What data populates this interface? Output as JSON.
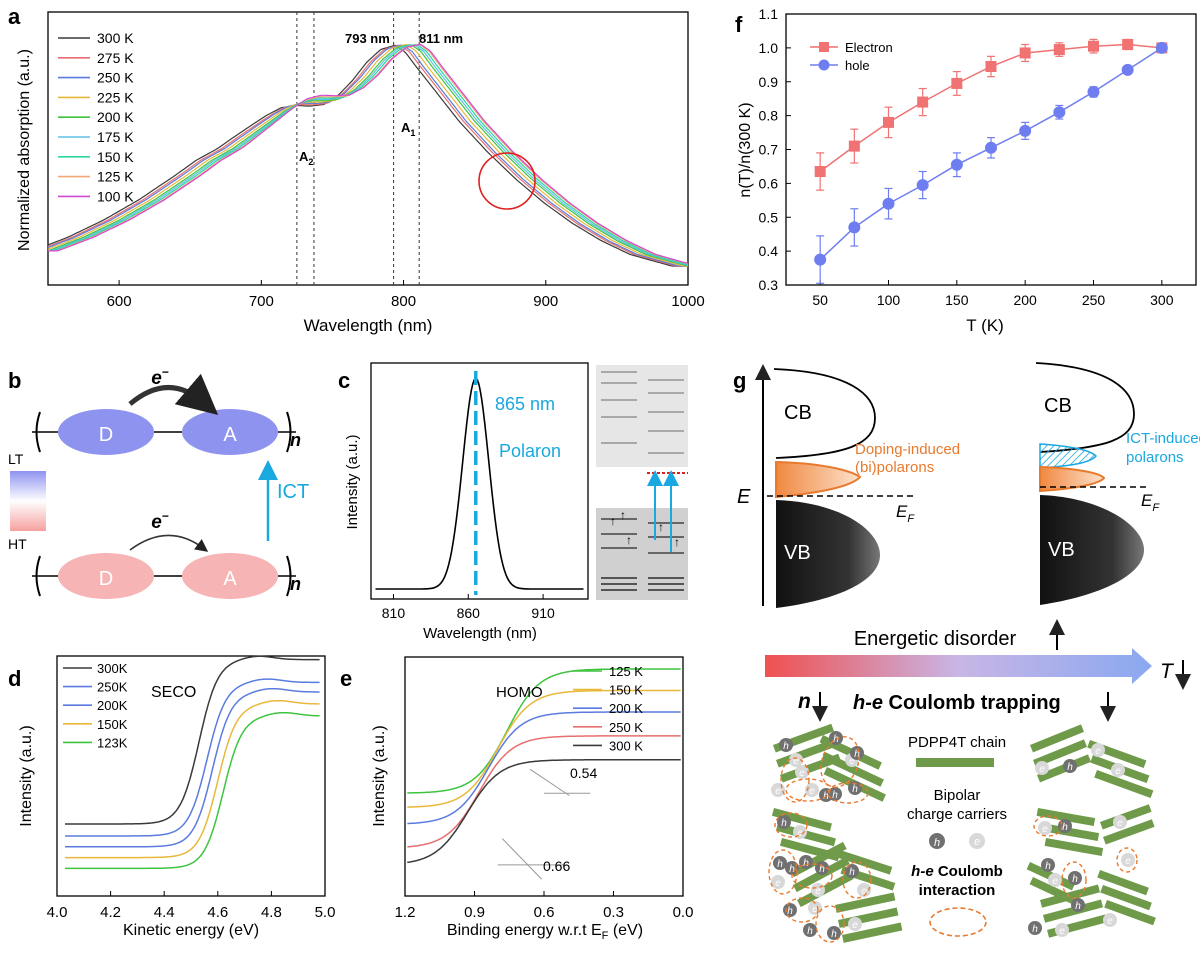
{
  "panel_letters": {
    "a": "a",
    "b": "b",
    "c": "c",
    "d": "d",
    "e": "e",
    "f": "f",
    "g": "g"
  },
  "colors": {
    "t300": "#3a3a3a",
    "t275": "#e86f6f",
    "t250": "#5b7be0",
    "t225": "#e8b83a",
    "t200": "#3ec43e",
    "t175": "#5fc0e8",
    "t150": "#2ad6a0",
    "t125": "#f0a878",
    "t100": "#d24ad2",
    "electron": "#f07272",
    "hole": "#6e7ef0",
    "lt": "#8f93f0",
    "ht": "#f6b4b4",
    "ict": "#19a8e0",
    "doping": "#e87a2e",
    "chain": "#6f9a4a",
    "red_circle": "#e02020"
  },
  "chart_data": [
    {
      "id": "a",
      "type": "line",
      "xlabel": "Wavelength (nm)",
      "ylabel": "Normalized absorption (a.u.)",
      "xlim": [
        550,
        1000
      ],
      "ylim": [
        0.2,
        1.0
      ],
      "xticks": [
        "600",
        "700",
        "800",
        "900",
        "1000"
      ],
      "annotations": {
        "peak1": "793 nm",
        "peak2": "811 nm",
        "a1": "A",
        "a1_sub": "1",
        "a2": "A",
        "a2_sub": "2"
      },
      "dashed_lines_x": [
        725,
        737,
        793,
        811
      ],
      "series": [
        {
          "name": "300 K",
          "key": "t300",
          "shift": -11
        },
        {
          "name": "275 K",
          "key": "t275",
          "shift": -8
        },
        {
          "name": "250 K",
          "key": "t250",
          "shift": -6
        },
        {
          "name": "225 K",
          "key": "t225",
          "shift": -3
        },
        {
          "name": "200 K",
          "key": "t200",
          "shift": 0
        },
        {
          "name": "175 K",
          "key": "t175",
          "shift": 2
        },
        {
          "name": "150 K",
          "key": "t150",
          "shift": 4
        },
        {
          "name": "125 K",
          "key": "t125",
          "shift": 6
        },
        {
          "name": "100 K",
          "key": "t100",
          "shift": 7
        }
      ],
      "base_curve": {
        "x": [
          550,
          575,
          600,
          625,
          650,
          665,
          680,
          700,
          715,
          725,
          735,
          745,
          755,
          765,
          775,
          785,
          795,
          805,
          812,
          820,
          835,
          850,
          870,
          890,
          910,
          930,
          950,
          970,
          1000
        ],
        "y": [
          0.3,
          0.34,
          0.39,
          0.45,
          0.52,
          0.565,
          0.6,
          0.66,
          0.705,
          0.73,
          0.74,
          0.74,
          0.745,
          0.77,
          0.81,
          0.86,
          0.895,
          0.905,
          0.885,
          0.84,
          0.76,
          0.68,
          0.59,
          0.51,
          0.44,
          0.38,
          0.33,
          0.29,
          0.255
        ]
      }
    },
    {
      "id": "c",
      "type": "line",
      "xlabel": "Wavelength (nm)",
      "ylabel": "Intensity (a.u.)",
      "xlim": [
        795,
        940
      ],
      "ylim": [
        0,
        1.12
      ],
      "xticks": [
        "810",
        "860",
        "910"
      ],
      "center": 865,
      "sigma": 8.7,
      "annotations": {
        "wavelength": "865 nm",
        "label": "Polaron"
      }
    },
    {
      "id": "d",
      "type": "line",
      "title": "SECO",
      "xlabel": "Kinetic energy (eV)",
      "ylabel": "Intensity (a.u.)",
      "xlim": [
        4.0,
        5.0
      ],
      "ylim": [
        0,
        1
      ],
      "xticks": [
        "4.0",
        "4.2",
        "4.4",
        "4.6",
        "4.8",
        "5.0"
      ],
      "series": [
        {
          "name": "300K",
          "key": "t300",
          "low": 0.3,
          "high": 0.985,
          "center": 4.53
        },
        {
          "name": "250K",
          "key": "t250",
          "high_key": "x",
          "low": 0.25,
          "high": 0.89,
          "center": 4.56
        },
        {
          "name": "200K",
          "key": "t250c",
          "low": 0.205,
          "high": 0.85,
          "center": 4.58
        },
        {
          "name": "150K",
          "key": "t225",
          "low": 0.16,
          "high": 0.8,
          "center": 4.6
        },
        {
          "name": "123K",
          "key": "t200",
          "low": 0.115,
          "high": 0.75,
          "center": 4.62
        }
      ]
    },
    {
      "id": "e",
      "type": "line",
      "title": "HOMO",
      "xlabel": "Binding energy w.r.t E",
      "xlabel_sub": "F",
      "xlabel_unit": " (eV)",
      "ylabel": "Intensity (a.u.)",
      "xlim": [
        1.2,
        0.0
      ],
      "ylim": [
        0,
        1
      ],
      "xticks": [
        "1.2",
        "0.9",
        "0.6",
        "0.3",
        "0.0"
      ],
      "annotations": {
        "onset_high": "0.54",
        "onset_low": "0.66"
      },
      "series": [
        {
          "name": "125 K",
          "key": "t200",
          "high": 0.95,
          "low": 0.43,
          "center": 0.76
        },
        {
          "name": "150 K",
          "key": "t225",
          "high": 0.86,
          "low": 0.37,
          "center": 0.8
        },
        {
          "name": "200 K",
          "key": "t250",
          "high": 0.77,
          "low": 0.3,
          "center": 0.84
        },
        {
          "name": "250 K",
          "key": "t275",
          "high": 0.67,
          "low": 0.2,
          "center": 0.88
        },
        {
          "name": "300 K",
          "key": "t300",
          "high": 0.57,
          "low": 0.13,
          "center": 0.93
        }
      ]
    },
    {
      "id": "f",
      "type": "line",
      "xlabel": "T (K)",
      "ylabel": "n(T)/n(300 K)",
      "xlim": [
        25,
        325
      ],
      "ylim": [
        0.3,
        1.1
      ],
      "xticks": [
        "50",
        "100",
        "150",
        "200",
        "250",
        "300"
      ],
      "yticks": [
        "0.3",
        "0.4",
        "0.5",
        "0.6",
        "0.7",
        "0.8",
        "0.9",
        "1.0",
        "1.1"
      ],
      "x": [
        50,
        75,
        100,
        125,
        150,
        175,
        200,
        225,
        250,
        275,
        300
      ],
      "series": [
        {
          "name": "Electron",
          "key": "electron",
          "values": [
            0.635,
            0.71,
            0.78,
            0.84,
            0.895,
            0.945,
            0.985,
            0.995,
            1.005,
            1.01,
            1.0
          ],
          "err": [
            0.055,
            0.05,
            0.045,
            0.04,
            0.035,
            0.03,
            0.025,
            0.02,
            0.02,
            0.015,
            0.005
          ]
        },
        {
          "name": "hole",
          "key": "hole",
          "values": [
            0.375,
            0.47,
            0.54,
            0.595,
            0.655,
            0.705,
            0.755,
            0.81,
            0.87,
            0.935,
            1.0
          ],
          "err": [
            0.07,
            0.055,
            0.045,
            0.04,
            0.035,
            0.03,
            0.025,
            0.02,
            0.015,
            0.01,
            0.005
          ]
        }
      ]
    }
  ],
  "panel_b": {
    "donor": "D",
    "acceptor": "A",
    "electron": "e",
    "electron_sup": "−",
    "repeat": "n",
    "lt": "LT",
    "ht": "HT",
    "ict": "ICT"
  },
  "panel_g": {
    "energy": "E",
    "cb": "CB",
    "vb": "VB",
    "fermi": "E",
    "fermi_sub": "F",
    "doping": "Doping-induced",
    "doping2": "(bi)polarons",
    "ict": "ICT-induced",
    "ict2": "polarons",
    "energetic_disorder": "Energetic disorder",
    "temperature": "T",
    "n_label": "n",
    "coulomb_prefix": "h-e",
    "coulomb_text": " Coulomb trapping",
    "legend_chain": "PDPP4T chain",
    "legend_carriers1": "Bipolar",
    "legend_carriers2": "charge carriers",
    "legend_interaction1": "h-e",
    "legend_interaction1b": " Coulomb",
    "legend_interaction2": "interaction",
    "hole_symbol": "h",
    "electron_symbol": "e"
  }
}
